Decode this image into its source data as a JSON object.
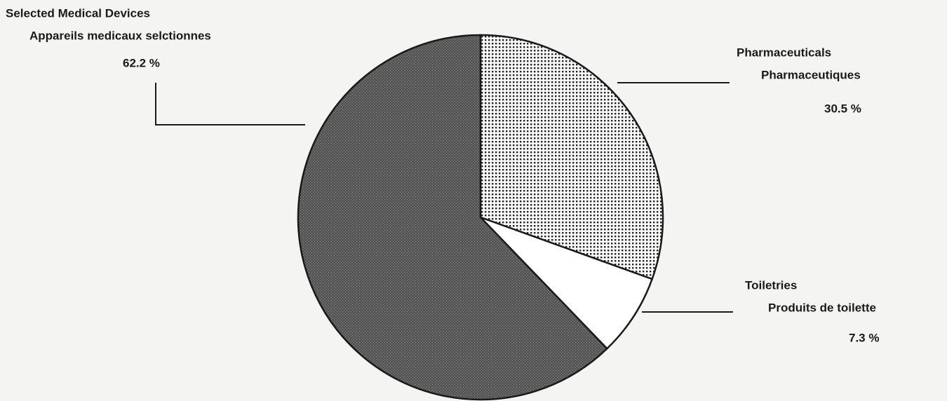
{
  "chart_data": {
    "type": "pie",
    "categories": [
      "Pharmaceuticals",
      "Toiletries",
      "Selected Medical Devices"
    ],
    "categories_fr": [
      "Pharmaceutiques",
      "Produits de toilette",
      "Appareils medicaux selctionnes"
    ],
    "values": [
      30.5,
      7.3,
      62.2
    ],
    "value_labels": [
      "30.5 %",
      "7.3 %",
      "62.2 %"
    ],
    "colors": [
      "#222222",
      "#ffffff",
      "#555555"
    ],
    "patterns": [
      "dots",
      "solid",
      "stipple"
    ],
    "start_angle": 90,
    "direction": "clockwise"
  }
}
